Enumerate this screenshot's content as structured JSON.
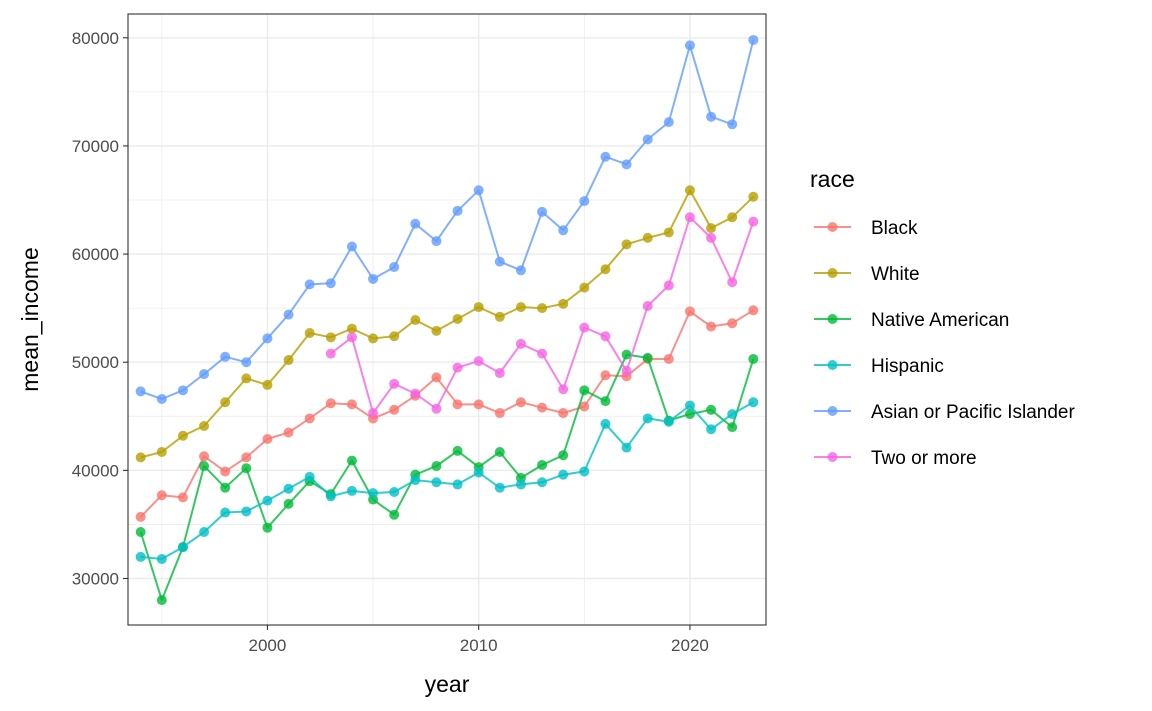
{
  "chart_data": {
    "type": "line",
    "xlabel": "year",
    "ylabel": "mean_income",
    "xlim": [
      1993.4,
      2023.6
    ],
    "ylim": [
      25700,
      82200
    ],
    "x_ticks": [
      2000,
      2010,
      2020
    ],
    "y_ticks": [
      30000,
      40000,
      50000,
      60000,
      70000,
      80000
    ],
    "grid": true,
    "legend": {
      "title": "race",
      "position": "right"
    },
    "series": [
      {
        "name": "Black",
        "color": "#F8766D",
        "x": [
          1994,
          1995,
          1996,
          1997,
          1998,
          1999,
          2000,
          2001,
          2002,
          2003,
          2004,
          2005,
          2006,
          2007,
          2008,
          2009,
          2010,
          2011,
          2012,
          2013,
          2014,
          2015,
          2016,
          2017,
          2018,
          2019,
          2020,
          2021,
          2022,
          2023
        ],
        "y": [
          35700,
          37700,
          37500,
          41300,
          39900,
          41200,
          42900,
          43500,
          44800,
          46200,
          46100,
          44800,
          45600,
          46900,
          48600,
          46100,
          46100,
          45300,
          46300,
          45800,
          45300,
          45900,
          48800,
          48700,
          50300,
          50300,
          54700,
          53300,
          53600,
          54800
        ]
      },
      {
        "name": "White",
        "color": "#B79F00",
        "x": [
          1994,
          1995,
          1996,
          1997,
          1998,
          1999,
          2000,
          2001,
          2002,
          2003,
          2004,
          2005,
          2006,
          2007,
          2008,
          2009,
          2010,
          2011,
          2012,
          2013,
          2014,
          2015,
          2016,
          2017,
          2018,
          2019,
          2020,
          2021,
          2022,
          2023
        ],
        "y": [
          41200,
          41700,
          43200,
          44100,
          46300,
          48500,
          47900,
          50200,
          52700,
          52300,
          53100,
          52200,
          52400,
          53900,
          52900,
          54000,
          55100,
          54200,
          55100,
          55000,
          55400,
          56900,
          58600,
          60900,
          61500,
          62000,
          65900,
          62400,
          63400,
          65300
        ]
      },
      {
        "name": "Native American",
        "color": "#00BA38",
        "x": [
          1994,
          1995,
          1996,
          1997,
          1998,
          1999,
          2000,
          2001,
          2002,
          2003,
          2004,
          2005,
          2006,
          2007,
          2008,
          2009,
          2010,
          2011,
          2012,
          2013,
          2014,
          2015,
          2016,
          2017,
          2018,
          2019,
          2020,
          2021,
          2022,
          2023
        ],
        "y": [
          34300,
          28000,
          32900,
          40400,
          38400,
          40200,
          34700,
          36900,
          39000,
          37800,
          40900,
          37300,
          35900,
          39600,
          40400,
          41800,
          40300,
          41700,
          39300,
          40500,
          41400,
          47400,
          46400,
          50700,
          50400,
          44600,
          45200,
          45600,
          44000,
          50300
        ]
      },
      {
        "name": "Hispanic",
        "color": "#00BFC4",
        "x": [
          1994,
          1995,
          1996,
          1997,
          1998,
          1999,
          2000,
          2001,
          2002,
          2003,
          2004,
          2005,
          2006,
          2007,
          2008,
          2009,
          2010,
          2011,
          2012,
          2013,
          2014,
          2015,
          2016,
          2017,
          2018,
          2019,
          2020,
          2021,
          2022,
          2023
        ],
        "y": [
          32000,
          31800,
          32900,
          34300,
          36100,
          36200,
          37200,
          38300,
          39400,
          37600,
          38100,
          37900,
          38000,
          39100,
          38900,
          38700,
          39800,
          38400,
          38700,
          38900,
          39600,
          39900,
          44300,
          42100,
          44800,
          44500,
          46000,
          43800,
          45200,
          46300
        ]
      },
      {
        "name": "Asian or Pacific Islander",
        "color": "#619CFF",
        "x": [
          1994,
          1995,
          1996,
          1997,
          1998,
          1999,
          2000,
          2001,
          2002,
          2003,
          2004,
          2005,
          2006,
          2007,
          2008,
          2009,
          2010,
          2011,
          2012,
          2013,
          2014,
          2015,
          2016,
          2017,
          2018,
          2019,
          2020,
          2021,
          2022,
          2023
        ],
        "y": [
          47300,
          46600,
          47400,
          48900,
          50500,
          50000,
          52200,
          54400,
          57200,
          57300,
          60700,
          57700,
          58800,
          62800,
          61200,
          64000,
          65900,
          59300,
          58500,
          63900,
          62200,
          64900,
          69000,
          68300,
          70600,
          72200,
          79300,
          72700,
          72000,
          79800
        ]
      },
      {
        "name": "Two or more",
        "color": "#F564E3",
        "x": [
          2003,
          2004,
          2005,
          2006,
          2007,
          2008,
          2009,
          2010,
          2011,
          2012,
          2013,
          2014,
          2015,
          2016,
          2017,
          2018,
          2019,
          2020,
          2021,
          2022,
          2023
        ],
        "y": [
          50800,
          52300,
          45300,
          48000,
          47100,
          45700,
          49500,
          50100,
          49000,
          51700,
          50800,
          47500,
          53200,
          52400,
          49200,
          55200,
          57100,
          63400,
          61500,
          57400,
          63000
        ]
      }
    ]
  }
}
